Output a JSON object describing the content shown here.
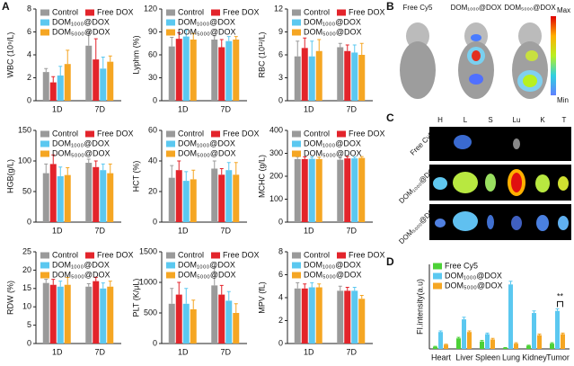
{
  "panel_labels": [
    "A",
    "B",
    "C",
    "D"
  ],
  "imaging": {
    "b_labels": [
      "Free Cy5",
      "DOM₁₀₀₀@DOX",
      "DOM₅₀₀₀@DOX"
    ],
    "scale": [
      "Max",
      "Min"
    ],
    "organs": [
      "H",
      "L",
      "S",
      "Lu",
      "K",
      "T"
    ],
    "c_rows": [
      "Free Cy5",
      "DOM₁₀₀₀@DOX",
      "DOM₅₀₀₀@DOX"
    ]
  },
  "chart_data": [
    {
      "type": "bar",
      "ylabel": "WBC (10⁹/L)",
      "categories": [
        "1D",
        "7D"
      ],
      "ylim": [
        0,
        8
      ],
      "yticks": [
        0,
        2,
        4,
        6,
        8
      ],
      "series": [
        {
          "name": "Control",
          "color": "#9a9a9a",
          "values": [
            2.5,
            4.8
          ],
          "errors": [
            0.3,
            1.2
          ]
        },
        {
          "name": "Free DOX",
          "color": "#e3242b",
          "values": [
            1.6,
            3.6
          ],
          "errors": [
            0.5,
            1.8
          ]
        },
        {
          "name": "DOM₁₀₀₀@DOX",
          "color": "#5bc8f0",
          "values": [
            2.2,
            2.8
          ],
          "errors": [
            0.8,
            1.0
          ]
        },
        {
          "name": "DOM₅₀₀₀@DOX",
          "color": "#f5a623",
          "values": [
            3.2,
            3.4
          ],
          "errors": [
            1.2,
            0.5
          ]
        }
      ]
    },
    {
      "type": "bar",
      "ylabel": "Lyphm (%)",
      "categories": [
        "1D",
        "7D"
      ],
      "ylim": [
        0,
        120
      ],
      "yticks": [
        0,
        30,
        60,
        90,
        120
      ],
      "series": [
        {
          "name": "Control",
          "color": "#9a9a9a",
          "values": [
            71,
            80
          ],
          "errors": [
            12,
            5
          ]
        },
        {
          "name": "Free DOX",
          "color": "#e3242b",
          "values": [
            81,
            70
          ],
          "errors": [
            8,
            10
          ]
        },
        {
          "name": "DOM₁₀₀₀@DOX",
          "color": "#5bc8f0",
          "values": [
            84,
            78
          ],
          "errors": [
            8,
            6
          ]
        },
        {
          "name": "DOM₅₀₀₀@DOX",
          "color": "#f5a623",
          "values": [
            80,
            80
          ],
          "errors": [
            8,
            4
          ]
        }
      ]
    },
    {
      "type": "bar",
      "ylabel": "RBC (10¹²/L)",
      "categories": [
        "1D",
        "7D"
      ],
      "ylim": [
        0,
        12
      ],
      "yticks": [
        0,
        3,
        6,
        9,
        12
      ],
      "series": [
        {
          "name": "Control",
          "color": "#9a9a9a",
          "values": [
            5.8,
            7.0
          ],
          "errors": [
            2.0,
            0.5
          ]
        },
        {
          "name": "Free DOX",
          "color": "#e3242b",
          "values": [
            6.9,
            6.5
          ],
          "errors": [
            1.3,
            0.8
          ]
        },
        {
          "name": "DOM₁₀₀₀@DOX",
          "color": "#5bc8f0",
          "values": [
            5.8,
            6.3
          ],
          "errors": [
            2.0,
            1.0
          ]
        },
        {
          "name": "DOM₅₀₀₀@DOX",
          "color": "#f5a623",
          "values": [
            6.5,
            6.0
          ],
          "errors": [
            1.5,
            1.5
          ]
        }
      ]
    },
    {
      "type": "bar",
      "ylabel": "HGB(g/L)",
      "categories": [
        "1D",
        "7D"
      ],
      "ylim": [
        0,
        150
      ],
      "yticks": [
        0,
        50,
        100,
        150
      ],
      "series": [
        {
          "name": "Control",
          "color": "#9a9a9a",
          "values": [
            80,
            97
          ],
          "errors": [
            15,
            6
          ]
        },
        {
          "name": "Free DOX",
          "color": "#e3242b",
          "values": [
            95,
            90
          ],
          "errors": [
            15,
            10
          ]
        },
        {
          "name": "DOM₁₀₀₀@DOX",
          "color": "#5bc8f0",
          "values": [
            75,
            85
          ],
          "errors": [
            15,
            10
          ]
        },
        {
          "name": "DOM₅₀₀₀@DOX",
          "color": "#f5a623",
          "values": [
            77,
            80
          ],
          "errors": [
            12,
            15
          ]
        }
      ]
    },
    {
      "type": "bar",
      "ylabel": "HCT (%)",
      "categories": [
        "1D",
        "7D"
      ],
      "ylim": [
        0,
        60
      ],
      "yticks": [
        0,
        20,
        40,
        60
      ],
      "series": [
        {
          "name": "Control",
          "color": "#9a9a9a",
          "values": [
            29,
            35
          ],
          "errors": [
            8,
            5
          ]
        },
        {
          "name": "Free DOX",
          "color": "#e3242b",
          "values": [
            34,
            31
          ],
          "errors": [
            6,
            4
          ]
        },
        {
          "name": "DOM₁₀₀₀@DOX",
          "color": "#5bc8f0",
          "values": [
            27,
            34
          ],
          "errors": [
            6,
            5
          ]
        },
        {
          "name": "DOM₅₀₀₀@DOX",
          "color": "#f5a623",
          "values": [
            28,
            31
          ],
          "errors": [
            6,
            8
          ]
        }
      ]
    },
    {
      "type": "bar",
      "ylabel": "MCHC (g/L)",
      "categories": [
        "1D",
        "7D"
      ],
      "ylim": [
        0,
        400
      ],
      "yticks": [
        0,
        100,
        200,
        300,
        400
      ],
      "series": [
        {
          "name": "Control",
          "color": "#9a9a9a",
          "values": [
            275,
            272
          ],
          "errors": [
            10,
            8
          ]
        },
        {
          "name": "Free DOX",
          "color": "#e3242b",
          "values": [
            275,
            278
          ],
          "errors": [
            10,
            8
          ]
        },
        {
          "name": "DOM₁₀₀₀@DOX",
          "color": "#5bc8f0",
          "values": [
            276,
            278
          ],
          "errors": [
            8,
            6
          ]
        },
        {
          "name": "DOM₅₀₀₀@DOX",
          "color": "#f5a623",
          "values": [
            275,
            280
          ],
          "errors": [
            8,
            6
          ]
        }
      ]
    },
    {
      "type": "bar",
      "ylabel": "RDW (%)",
      "categories": [
        "1D",
        "7D"
      ],
      "ylim": [
        0,
        25
      ],
      "yticks": [
        0,
        5,
        10,
        15,
        20,
        25
      ],
      "series": [
        {
          "name": "Control",
          "color": "#9a9a9a",
          "values": [
            16.5,
            15.5
          ],
          "errors": [
            1,
            0.8
          ]
        },
        {
          "name": "Free DOX",
          "color": "#e3242b",
          "values": [
            16,
            17
          ],
          "errors": [
            1.5,
            1
          ]
        },
        {
          "name": "DOM₁₀₀₀@DOX",
          "color": "#5bc8f0",
          "values": [
            15.5,
            15
          ],
          "errors": [
            1.5,
            1.5
          ]
        },
        {
          "name": "DOM₅₀₀₀@DOX",
          "color": "#f5a623",
          "values": [
            16,
            15.5
          ],
          "errors": [
            2,
            1.5
          ]
        }
      ]
    },
    {
      "type": "bar",
      "ylabel": "PLT (K/μL)",
      "categories": [
        "1D",
        "7D"
      ],
      "ylim": [
        0,
        1500
      ],
      "yticks": [
        0,
        500,
        1000,
        1500
      ],
      "series": [
        {
          "name": "Control",
          "color": "#9a9a9a",
          "values": [
            650,
            950
          ],
          "errors": [
            250,
            300
          ]
        },
        {
          "name": "Free DOX",
          "color": "#e3242b",
          "values": [
            800,
            800
          ],
          "errors": [
            200,
            150
          ]
        },
        {
          "name": "DOM₁₀₀₀@DOX",
          "color": "#5bc8f0",
          "values": [
            650,
            700
          ],
          "errors": [
            250,
            150
          ]
        },
        {
          "name": "DOM₅₀₀₀@DOX",
          "color": "#f5a623",
          "values": [
            560,
            500
          ],
          "errors": [
            150,
            150
          ]
        }
      ]
    },
    {
      "type": "bar",
      "ylabel": "MPV (fL)",
      "categories": [
        "1D",
        "7D"
      ],
      "ylim": [
        0,
        8
      ],
      "yticks": [
        0,
        2,
        4,
        6,
        8
      ],
      "series": [
        {
          "name": "Control",
          "color": "#9a9a9a",
          "values": [
            4.8,
            4.6
          ],
          "errors": [
            0.5,
            0.4
          ]
        },
        {
          "name": "Free DOX",
          "color": "#e3242b",
          "values": [
            4.8,
            4.6
          ],
          "errors": [
            0.4,
            0.3
          ]
        },
        {
          "name": "DOM₁₀₀₀@DOX",
          "color": "#5bc8f0",
          "values": [
            4.9,
            4.6
          ],
          "errors": [
            0.4,
            0.3
          ]
        },
        {
          "name": "DOM₅₀₀₀@DOX",
          "color": "#f5a623",
          "values": [
            4.9,
            3.9
          ],
          "errors": [
            0.3,
            0.3
          ]
        }
      ]
    },
    {
      "type": "bar",
      "ylabel": "FI.intensity(a.u)",
      "categories": [
        "Heart",
        "Liver",
        "Spleen",
        "Lung",
        "Kidney",
        "Tumor"
      ],
      "ylim": [
        0,
        80
      ],
      "annotation": "**",
      "series": [
        {
          "name": "Free Cy5",
          "color": "#4cd137",
          "values": [
            2,
            10,
            7,
            1,
            3,
            5
          ],
          "errors": [
            0.5,
            1,
            1,
            0.3,
            0.5,
            0.8
          ]
        },
        {
          "name": "DOM₁₀₀₀@DOX",
          "color": "#5bc8f0",
          "values": [
            16,
            28,
            14,
            61,
            34,
            36
          ],
          "errors": [
            1,
            2,
            1,
            3,
            2,
            2
          ]
        },
        {
          "name": "DOM₅₀₀₀@DOX",
          "color": "#f5a623",
          "values": [
            4,
            16,
            9,
            5,
            13,
            14
          ],
          "errors": [
            0.5,
            1,
            1,
            0.8,
            1,
            1
          ]
        }
      ]
    }
  ]
}
